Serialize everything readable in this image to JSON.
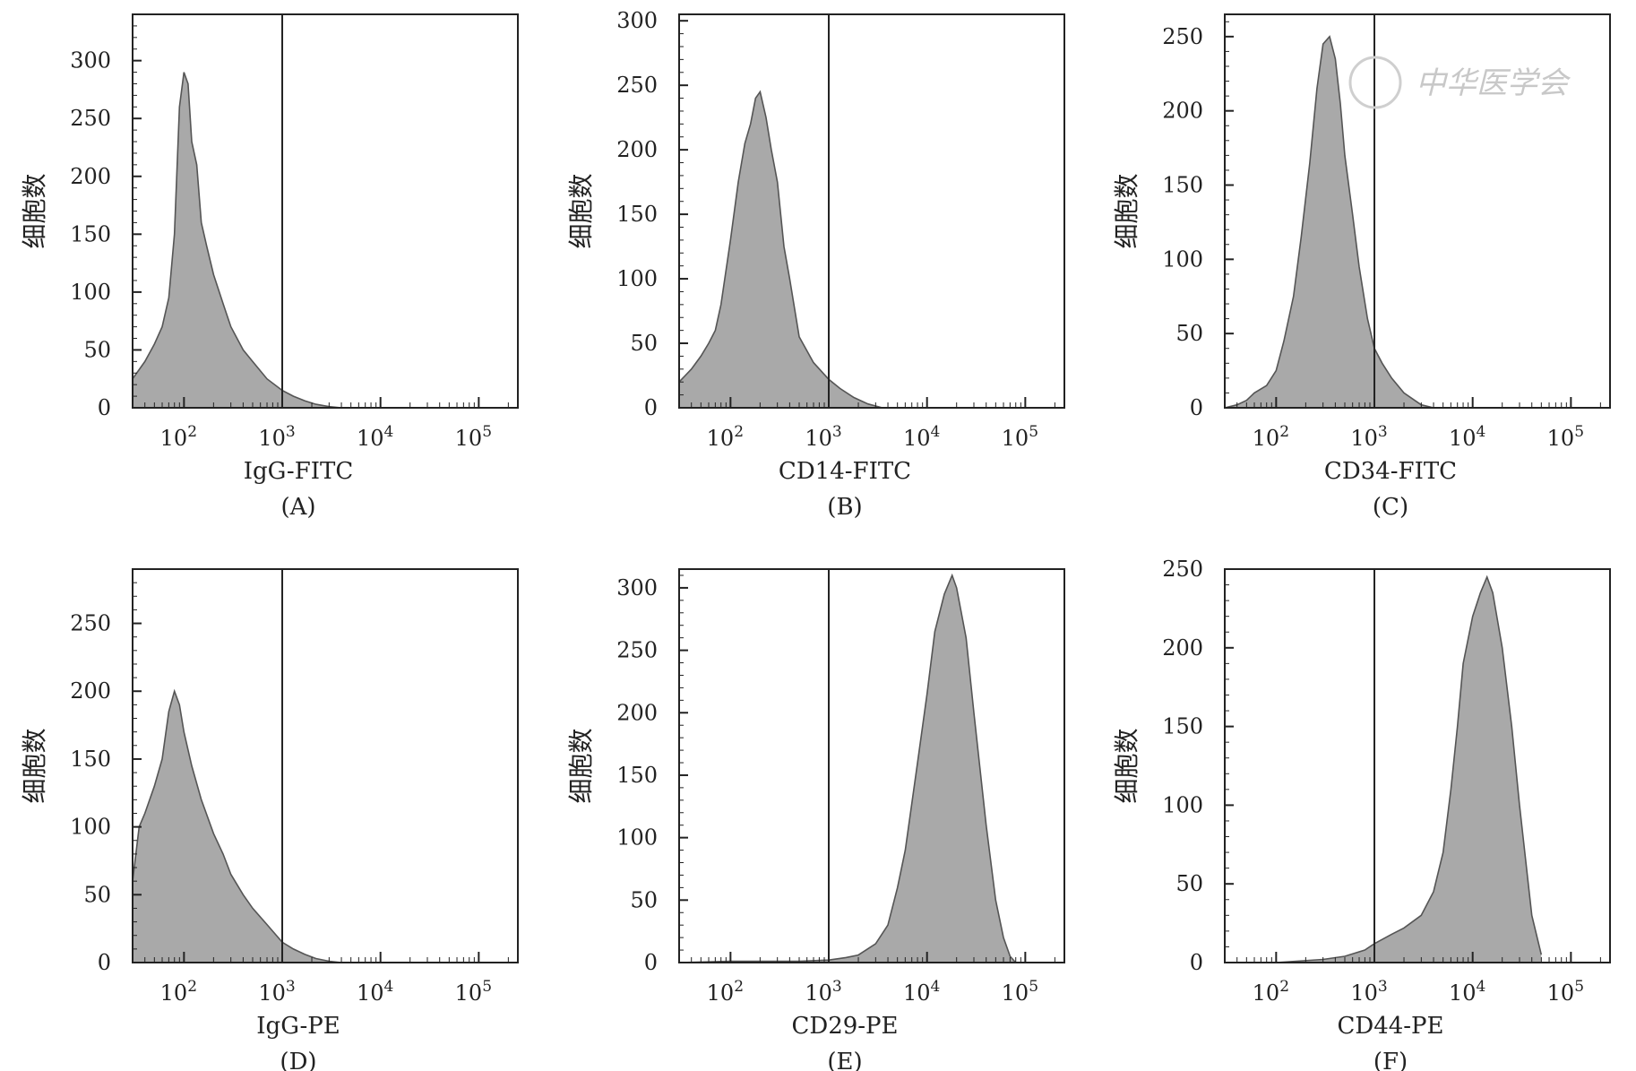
{
  "figure": {
    "y_label": "细胞数",
    "watermark": "中华医学会"
  },
  "chart_data": [
    {
      "id": "A",
      "type": "area",
      "panel_label": "(A)",
      "xlabel": "IgG-FITC",
      "ylabel": "细胞数",
      "x_scale": "log",
      "xlim": [
        30,
        250000
      ],
      "ylim": [
        0,
        340
      ],
      "x_ticks": [
        100,
        1000,
        10000,
        100000
      ],
      "x_tick_labels": [
        "10^2",
        "10^3",
        "10^4",
        "10^5"
      ],
      "y_ticks": [
        0,
        50,
        100,
        150,
        200,
        250,
        300
      ],
      "gate_x": 1000,
      "x": [
        30,
        40,
        50,
        60,
        70,
        80,
        90,
        100,
        110,
        120,
        135,
        150,
        170,
        200,
        250,
        300,
        400,
        500,
        700,
        1000,
        1300,
        1700,
        2200,
        3000,
        4000
      ],
      "y": [
        25,
        40,
        55,
        70,
        95,
        150,
        260,
        290,
        280,
        230,
        210,
        160,
        140,
        115,
        90,
        70,
        50,
        40,
        25,
        15,
        10,
        6,
        3,
        1,
        0
      ]
    },
    {
      "id": "B",
      "type": "area",
      "panel_label": "(B)",
      "xlabel": "CD14-FITC",
      "ylabel": "细胞数",
      "x_scale": "log",
      "xlim": [
        30,
        250000
      ],
      "ylim": [
        0,
        305
      ],
      "x_ticks": [
        100,
        1000,
        10000,
        100000
      ],
      "x_tick_labels": [
        "10^2",
        "10^3",
        "10^4",
        "10^5"
      ],
      "y_ticks": [
        0,
        50,
        100,
        150,
        200,
        250,
        300
      ],
      "gate_x": 1000,
      "x": [
        30,
        40,
        50,
        60,
        70,
        80,
        100,
        120,
        140,
        160,
        180,
        200,
        230,
        260,
        300,
        350,
        400,
        500,
        700,
        1000,
        1300,
        1800,
        2500,
        3500
      ],
      "y": [
        20,
        30,
        40,
        50,
        60,
        80,
        130,
        175,
        205,
        220,
        240,
        245,
        225,
        200,
        175,
        125,
        100,
        55,
        35,
        22,
        15,
        8,
        3,
        0
      ]
    },
    {
      "id": "C",
      "type": "area",
      "panel_label": "(C)",
      "xlabel": "CD34-FITC",
      "ylabel": "细胞数",
      "x_scale": "log",
      "xlim": [
        30,
        250000
      ],
      "ylim": [
        0,
        265
      ],
      "x_ticks": [
        100,
        1000,
        10000,
        100000
      ],
      "x_tick_labels": [
        "10^2",
        "10^3",
        "10^4",
        "10^5"
      ],
      "y_ticks": [
        0,
        50,
        100,
        150,
        200,
        250
      ],
      "gate_x": 1000,
      "x": [
        30,
        40,
        50,
        60,
        80,
        100,
        120,
        150,
        180,
        220,
        260,
        300,
        350,
        400,
        450,
        500,
        600,
        700,
        850,
        1000,
        1200,
        1500,
        2000,
        3000,
        4000
      ],
      "y": [
        0,
        2,
        5,
        10,
        15,
        25,
        45,
        75,
        115,
        165,
        215,
        245,
        250,
        235,
        205,
        170,
        130,
        95,
        60,
        40,
        30,
        20,
        10,
        2,
        0
      ]
    },
    {
      "id": "D",
      "type": "area",
      "panel_label": "(D)",
      "xlabel": "IgG-PE",
      "ylabel": "细胞数",
      "x_scale": "log",
      "xlim": [
        30,
        250000
      ],
      "ylim": [
        0,
        290
      ],
      "x_ticks": [
        100,
        1000,
        10000,
        100000
      ],
      "x_tick_labels": [
        "10^2",
        "10^3",
        "10^4",
        "10^5"
      ],
      "y_ticks": [
        0,
        50,
        100,
        150,
        200,
        250
      ],
      "gate_x": 1000,
      "x": [
        30,
        35,
        40,
        50,
        60,
        70,
        80,
        90,
        100,
        120,
        150,
        200,
        250,
        300,
        400,
        500,
        700,
        1000,
        1300,
        1700,
        2200,
        3000,
        4000
      ],
      "y": [
        60,
        100,
        110,
        130,
        150,
        185,
        200,
        190,
        170,
        145,
        120,
        95,
        80,
        65,
        50,
        40,
        28,
        15,
        10,
        6,
        3,
        1,
        0
      ]
    },
    {
      "id": "E",
      "type": "area",
      "panel_label": "(E)",
      "xlabel": "CD29-PE",
      "ylabel": "细胞数",
      "x_scale": "log",
      "xlim": [
        30,
        250000
      ],
      "ylim": [
        0,
        315
      ],
      "x_ticks": [
        100,
        1000,
        10000,
        100000
      ],
      "x_tick_labels": [
        "10^2",
        "10^3",
        "10^4",
        "10^5"
      ],
      "y_ticks": [
        0,
        50,
        100,
        150,
        200,
        250,
        300
      ],
      "gate_x": 1000,
      "x": [
        30,
        100,
        500,
        1000,
        1500,
        2000,
        3000,
        4000,
        5000,
        6000,
        8000,
        10000,
        12000,
        15000,
        18000,
        20000,
        25000,
        30000,
        40000,
        50000,
        60000,
        70000,
        80000
      ],
      "y": [
        0,
        1,
        1,
        2,
        4,
        6,
        15,
        30,
        60,
        90,
        160,
        215,
        265,
        295,
        310,
        300,
        260,
        200,
        110,
        50,
        20,
        5,
        0
      ]
    },
    {
      "id": "F",
      "type": "area",
      "panel_label": "(F)",
      "xlabel": "CD44-PE",
      "ylabel": "细胞数",
      "x_scale": "log",
      "xlim": [
        30,
        250000
      ],
      "ylim": [
        0,
        250
      ],
      "x_ticks": [
        100,
        1000,
        10000,
        100000
      ],
      "x_tick_labels": [
        "10^2",
        "10^3",
        "10^4",
        "10^5"
      ],
      "y_ticks": [
        0,
        50,
        100,
        150,
        200,
        250
      ],
      "gate_x": 1000,
      "x": [
        30,
        100,
        300,
        500,
        800,
        1000,
        1500,
        2000,
        3000,
        4000,
        5000,
        6000,
        7000,
        8000,
        10000,
        12000,
        14000,
        16000,
        20000,
        25000,
        30000,
        40000,
        50000
      ],
      "y": [
        0,
        0,
        2,
        4,
        8,
        12,
        18,
        22,
        30,
        45,
        70,
        110,
        150,
        190,
        220,
        235,
        245,
        235,
        200,
        150,
        100,
        30,
        5
      ]
    }
  ]
}
